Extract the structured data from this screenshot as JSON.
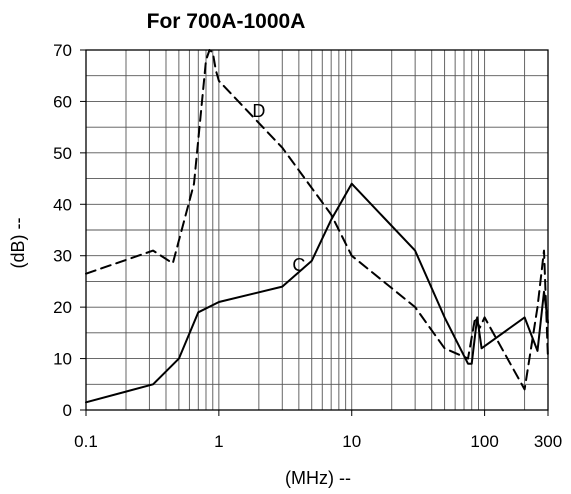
{
  "chart_data": {
    "type": "line",
    "title": "For 700A-1000A",
    "xlabel": "(MHz) --",
    "ylabel": "(dB) --",
    "x_scale": "log",
    "xlim": [
      0.1,
      300
    ],
    "ylim": [
      0,
      70
    ],
    "x_ticks": [
      0.1,
      1,
      10,
      100,
      300
    ],
    "x_tick_labels": [
      "0.1",
      "1",
      "10",
      "100",
      "300"
    ],
    "y_ticks": [
      0,
      10,
      20,
      30,
      40,
      50,
      60,
      70
    ],
    "y_tick_labels": [
      "0",
      "10",
      "20",
      "30",
      "40",
      "50",
      "60",
      "70"
    ],
    "grid": true,
    "series": [
      {
        "name": "D",
        "style": "dashed",
        "color": "#000000",
        "x": [
          0.1,
          0.32,
          0.45,
          0.65,
          0.8,
          0.85,
          0.9,
          0.95,
          1.0,
          3.0,
          7.0,
          10.0,
          30.0,
          50.0,
          75.0,
          85.0,
          92.0,
          100.0,
          200.0,
          250.0,
          280.0,
          300.0
        ],
        "y": [
          26.5,
          31,
          28.5,
          44,
          68,
          70,
          69.5,
          66,
          64,
          51,
          38,
          30,
          20,
          12,
          10,
          18,
          16,
          18,
          4,
          20,
          31,
          10
        ]
      },
      {
        "name": "C",
        "style": "solid",
        "color": "#000000",
        "x": [
          0.1,
          0.32,
          0.5,
          0.7,
          1.0,
          3.0,
          5.0,
          7.0,
          10.0,
          30.0,
          50.0,
          75.0,
          80.0,
          88.0,
          95.0,
          200.0,
          250.0,
          280.0,
          300.0
        ],
        "y": [
          1.5,
          5,
          10,
          19,
          21,
          24,
          29,
          37,
          44,
          31,
          18,
          9,
          9,
          18,
          12,
          18,
          11.5,
          23,
          17
        ]
      }
    ],
    "annotations": [
      {
        "text": "D",
        "x": 2.0,
        "y": 57
      },
      {
        "text": "C",
        "x": 4.0,
        "y": 27
      }
    ]
  }
}
